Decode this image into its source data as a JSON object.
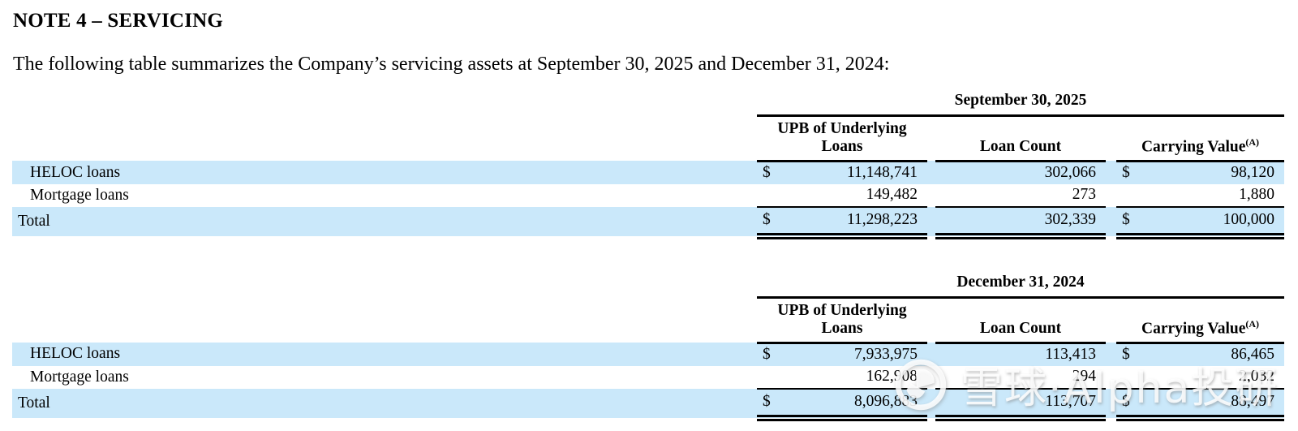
{
  "document": {
    "title": "NOTE 4 – SERVICING",
    "intro": "The following table summarizes the Company’s servicing assets at September 30, 2025 and December 31, 2024:"
  },
  "colors": {
    "row_highlight": "#cae8fa",
    "rule": "#000000",
    "text": "#000000"
  },
  "watermark": {
    "logo": "xueqiu-snowball-logo",
    "text": "雪球·Alpha投研"
  },
  "tables": [
    {
      "period": "September 30, 2025",
      "columns": [
        {
          "label": "UPB of Underlying\nLoans"
        },
        {
          "label": "Loan Count"
        },
        {
          "label": "Carrying Value",
          "sup": "(A)"
        }
      ],
      "rows": [
        {
          "type": "data",
          "label": "HELOC loans",
          "usd": "$",
          "upb": "11,148,741",
          "loan_count": "302,066",
          "carrying": "98,120",
          "highlight": true,
          "indent": true
        },
        {
          "type": "data",
          "label": "Mortgage loans",
          "usd": "",
          "upb": "149,482",
          "loan_count": "273",
          "carrying": "1,880",
          "highlight": false,
          "indent": true
        },
        {
          "type": "total",
          "label": "Total",
          "usd": "$",
          "upb": "11,298,223",
          "loan_count": "302,339",
          "carrying": "100,000",
          "highlight": true,
          "indent": false
        }
      ]
    },
    {
      "period": "December 31, 2024",
      "columns": [
        {
          "label": "UPB of Underlying\nLoans"
        },
        {
          "label": "Loan Count"
        },
        {
          "label": "Carrying Value",
          "sup": "(A)"
        }
      ],
      "rows": [
        {
          "type": "data",
          "label": "HELOC loans",
          "usd": "$",
          "upb": "7,933,975",
          "loan_count": "113,413",
          "carrying": "86,465",
          "highlight": true,
          "indent": true
        },
        {
          "type": "data",
          "label": "Mortgage loans",
          "usd": "",
          "upb": "162,908",
          "loan_count": "294",
          "carrying": "2,032",
          "highlight": false,
          "indent": true
        },
        {
          "type": "total",
          "label": "Total",
          "usd": "$",
          "upb": "8,096,883",
          "loan_count": "113,707",
          "carrying": "88,497",
          "highlight": true,
          "indent": false
        }
      ]
    }
  ]
}
